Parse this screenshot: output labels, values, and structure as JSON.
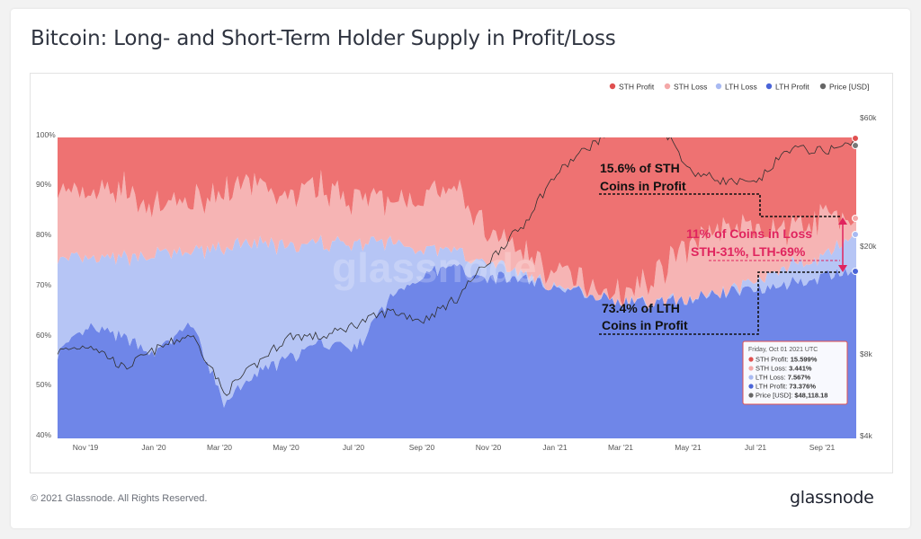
{
  "title": "Bitcoin: Long- and Short-Term Holder Supply in Profit/Loss",
  "footer": "© 2021 Glassnode. All Rights Reserved.",
  "brand": "glassnode",
  "watermark": "glassnode",
  "colors": {
    "sth_profit": "#ee7272",
    "sth_loss": "#f6b4b4",
    "lth_loss": "#b6c5f5",
    "lth_profit": "#6f86e8",
    "price": "#333333",
    "annotation_pink": "#e0245e"
  },
  "legend": [
    {
      "label": "STH Profit",
      "color": "#e05050"
    },
    {
      "label": "STH Loss",
      "color": "#f4a8a8"
    },
    {
      "label": "LTH Loss",
      "color": "#a9baf2"
    },
    {
      "label": "LTH Profit",
      "color": "#4a64d8"
    },
    {
      "label": "Price [USD]",
      "color": "#666666"
    }
  ],
  "annotations": {
    "sth_profit_line1": "15.6% of STH",
    "sth_profit_line2": "Coins in Profit",
    "lth_profit_line1": "73.4% of LTH",
    "lth_profit_line2": "Coins in Profit",
    "loss_line1": "11% of Coins in Loss",
    "loss_line2": "STH-31%, LTH-69%"
  },
  "tooltip": {
    "date": "Friday, Oct 01 2021 UTC",
    "rows": [
      {
        "label": "STH Profit: ",
        "value": "15.599%",
        "color": "#e05050"
      },
      {
        "label": "STH Loss: ",
        "value": "3.441%",
        "color": "#f4a8a8"
      },
      {
        "label": "LTH Loss: ",
        "value": "7.567%",
        "color": "#a9baf2"
      },
      {
        "label": "LTH Profit: ",
        "value": "73.376%",
        "color": "#4a64d8"
      },
      {
        "label": "Price [USD]: ",
        "value": "$48,118.18",
        "color": "#666666"
      }
    ]
  },
  "chart_data": {
    "type": "area",
    "title": "Bitcoin: Long- and Short-Term Holder Supply in Profit/Loss",
    "y_left_ticks": [
      "100%",
      "90%",
      "80%",
      "70%",
      "60%",
      "50%",
      "40%"
    ],
    "y_left_range": [
      40,
      100
    ],
    "y_right_ticks": [
      "$60k",
      "$20k",
      "$8k",
      "$4k"
    ],
    "y_right_scale": "log",
    "x_ticks": [
      "Nov '19",
      "Jan '20",
      "Mar '20",
      "May '20",
      "Jul '20",
      "Sep '20",
      "Nov '20",
      "Jan '21",
      "Mar '21",
      "May '21",
      "Jul '21",
      "Sep '21"
    ],
    "x_months": [
      "2019-10",
      "2019-11",
      "2019-12",
      "2020-01",
      "2020-02",
      "2020-03",
      "2020-04",
      "2020-05",
      "2020-06",
      "2020-07",
      "2020-08",
      "2020-09",
      "2020-10",
      "2020-11",
      "2020-12",
      "2021-01",
      "2021-02",
      "2021-03",
      "2021-04",
      "2021-05",
      "2021-06",
      "2021-07",
      "2021-08",
      "2021-09",
      "2021-10"
    ],
    "series": [
      {
        "name": "LTH Profit",
        "values": [
          57,
          62,
          60,
          57,
          63,
          47,
          53,
          56,
          59,
          58,
          68,
          73,
          74,
          72,
          72,
          70,
          69,
          67,
          67,
          68,
          69,
          70,
          71,
          72,
          73.4
        ]
      },
      {
        "name": "LTH Loss",
        "values": [
          18.5,
          13.5,
          16,
          19.7,
          14,
          31,
          26,
          22,
          20,
          21,
          11,
          5,
          3,
          3,
          1,
          0,
          0,
          0,
          0,
          0,
          0,
          2,
          3.5,
          4,
          7.6
        ]
      },
      {
        "name": "STH Loss",
        "values": [
          14,
          13,
          14,
          9,
          10,
          12,
          11,
          10,
          11,
          9,
          8,
          10,
          12,
          6,
          4,
          3,
          2,
          2,
          6,
          11,
          13,
          10,
          7,
          8,
          3.4
        ]
      },
      {
        "name": "STH Profit",
        "values": [
          10.5,
          11.5,
          10,
          14.3,
          13,
          10,
          10,
          12,
          10,
          12,
          13,
          12,
          11,
          19,
          23,
          27,
          29,
          31,
          27,
          21,
          18,
          18,
          18.5,
          16,
          15.6
        ]
      },
      {
        "name": "Price [USD]",
        "values": [
          8300,
          8800,
          7200,
          8500,
          9600,
          5800,
          7500,
          9500,
          9400,
          10500,
          11700,
          10800,
          13000,
          18000,
          24000,
          37000,
          47000,
          56000,
          58000,
          38000,
          35000,
          34000,
          46000,
          45000,
          48118
        ]
      }
    ],
    "legend_position": "top-right"
  }
}
